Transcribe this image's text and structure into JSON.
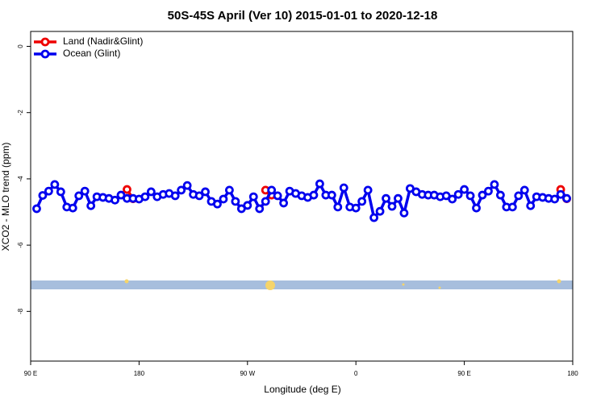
{
  "chart_data": {
    "type": "line",
    "title": "50S-45S April (Ver 10)   2015-01-01 to 2020-12-18",
    "x_label": "Longitude (deg E)",
    "y_label": "XCO2 - MLO trend (ppm)",
    "xlim": [
      90,
      540
    ],
    "ylim": [
      -9.5,
      0.45
    ],
    "xticks": [
      {
        "value": 90,
        "label": "90 E"
      },
      180,
      {
        "value": 270,
        "label": "90 W"
      },
      {
        "value": 360,
        "label": "0"
      },
      {
        "value": 450,
        "label": "90 E"
      },
      {
        "value": 540,
        "label": "180"
      }
    ],
    "yticks": [
      0,
      -2,
      -4,
      -6,
      -8
    ],
    "legend": "top-left",
    "series": [
      {
        "name": "Land (Nadir&Glint)",
        "color": "#ee0000",
        "x": [
          170,
          175,
          180,
          285,
          290,
          295,
          530,
          535
        ],
        "values": [
          -4.32,
          -4.6,
          null,
          -4.34,
          -4.49,
          null,
          -4.32,
          -4.6
        ]
      },
      {
        "name": "Ocean (Glint)",
        "color": "#0000ee",
        "x": [
          95,
          100,
          105,
          110,
          115,
          120,
          125,
          130,
          135,
          140,
          145,
          150,
          155,
          160,
          165,
          170,
          175,
          180,
          185,
          190,
          195,
          200,
          205,
          210,
          215,
          220,
          225,
          230,
          235,
          240,
          245,
          250,
          255,
          260,
          265,
          270,
          275,
          280,
          285,
          290,
          295,
          300,
          305,
          310,
          315,
          320,
          325,
          330,
          335,
          340,
          345,
          350,
          355,
          360,
          365,
          370,
          375,
          380,
          385,
          390,
          395,
          400,
          405,
          410,
          415,
          420,
          425,
          430,
          435,
          440,
          445,
          450,
          455,
          460,
          465,
          470,
          475,
          480,
          485,
          490,
          495,
          500,
          505,
          510,
          515,
          520,
          525,
          530,
          535
        ],
        "values": [
          -4.9,
          -4.5,
          -4.37,
          -4.17,
          -4.39,
          -4.85,
          -4.88,
          -4.51,
          -4.37,
          -4.81,
          -4.54,
          -4.56,
          -4.59,
          -4.64,
          -4.49,
          -4.59,
          -4.59,
          -4.61,
          -4.54,
          -4.39,
          -4.54,
          -4.47,
          -4.44,
          -4.51,
          -4.34,
          -4.2,
          -4.47,
          -4.51,
          -4.39,
          -4.68,
          -4.76,
          -4.61,
          -4.34,
          -4.68,
          -4.9,
          -4.8,
          -4.54,
          -4.9,
          -4.68,
          -4.34,
          -4.51,
          -4.73,
          -4.37,
          -4.44,
          -4.51,
          -4.56,
          -4.49,
          -4.15,
          -4.49,
          -4.49,
          -4.85,
          -4.27,
          -4.85,
          -4.88,
          -4.68,
          -4.34,
          -5.17,
          -4.98,
          -4.59,
          -4.83,
          -4.59,
          -5.03,
          -4.29,
          -4.39,
          -4.47,
          -4.49,
          -4.49,
          -4.54,
          -4.51,
          -4.61,
          -4.47,
          -4.32,
          -4.51,
          -4.88,
          -4.49,
          -4.37,
          -4.17,
          -4.49,
          -4.85,
          -4.85,
          -4.51,
          -4.34,
          -4.81,
          -4.54,
          -4.56,
          -4.59,
          -4.61,
          -4.47,
          -4.59
        ]
      }
    ]
  }
}
